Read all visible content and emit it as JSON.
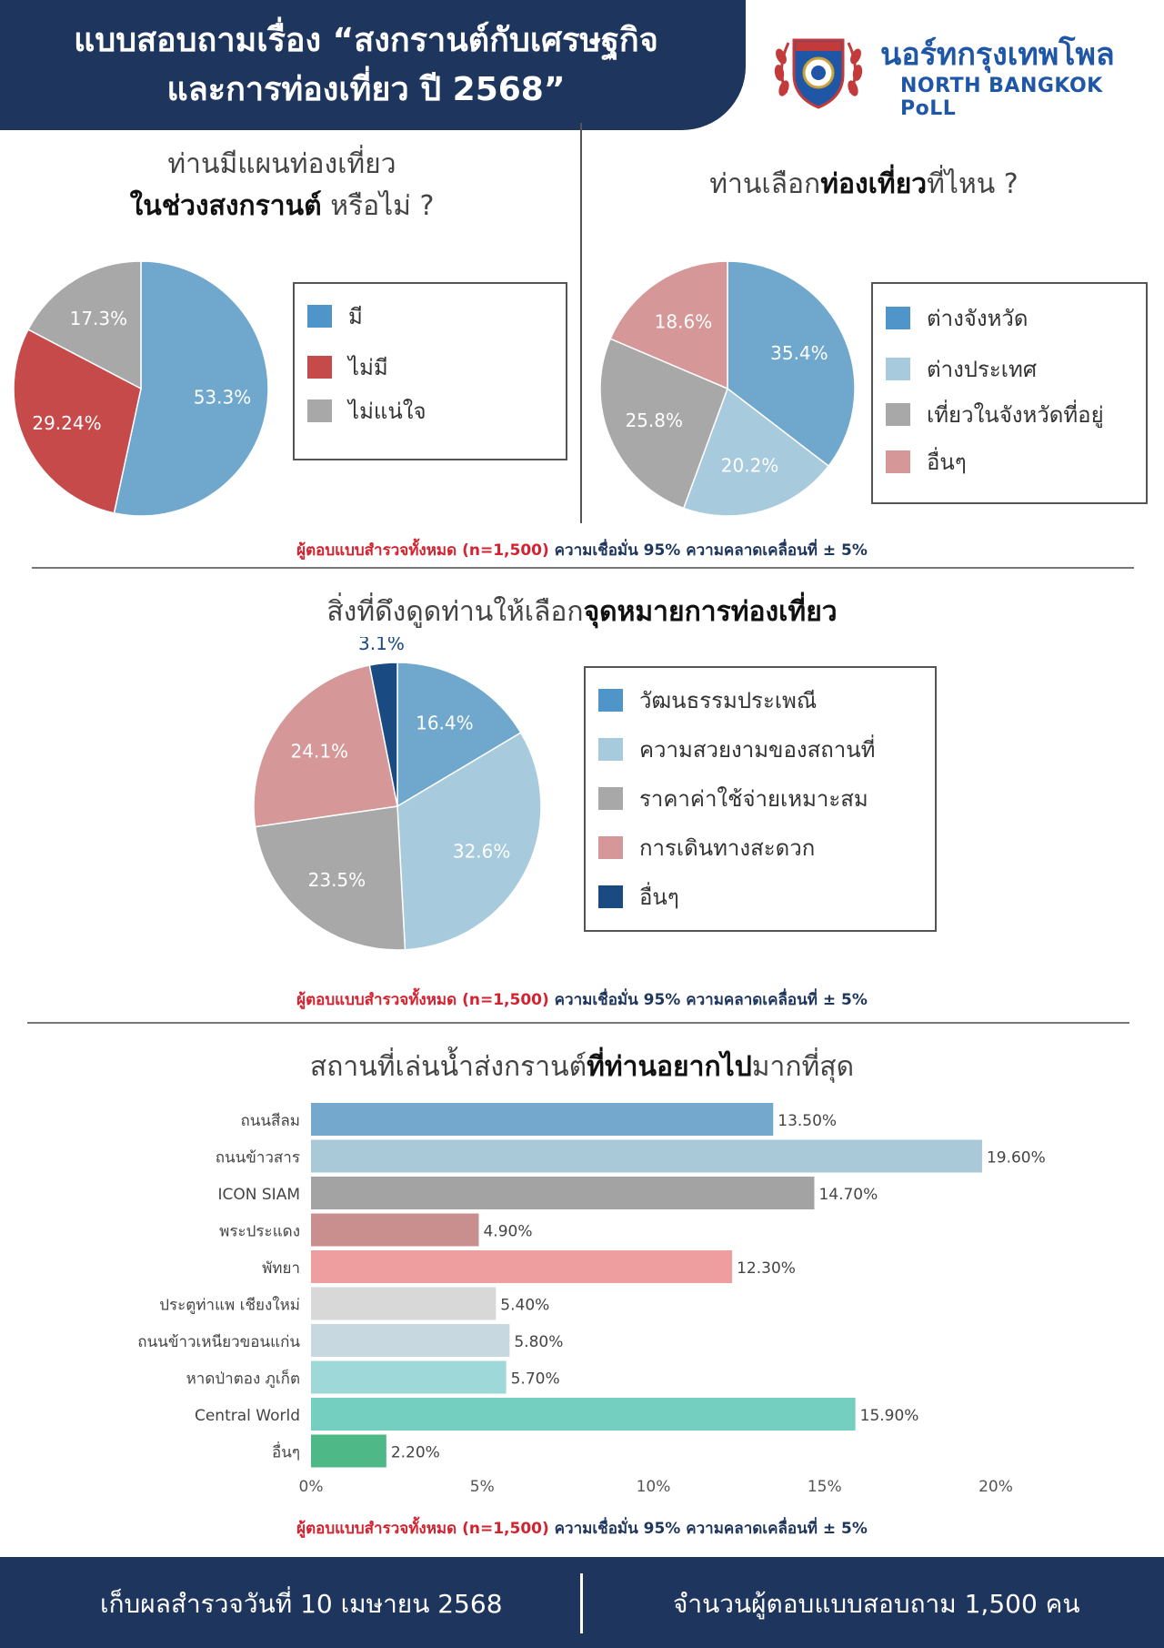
{
  "header": {
    "title_line1": "แบบสอบถามเรื่อง “สงกรานต์กับเศรษฐกิจ",
    "title_line2": "และการท่องเที่ยว ปี 2568”",
    "brand_thai": "นอร์ทกรุงเทพโพล",
    "brand_eng": "NORTH BANGKOK PoLL"
  },
  "colors": {
    "navy": "#1e365e",
    "red_note": "#d32330",
    "brand_blue": "#1f57a6"
  },
  "survey_note": {
    "red": "ผู้ตอบแบบสำรวจทั้งหมด (n=1,500)",
    "blue": "ความเชื่อมั่น 95% ความคลาดเคลื่อนที่ ± 5%"
  },
  "q1": {
    "title_line1": "ท่านมีแผนท่องเที่ยว",
    "title_bold": "ในช่วงสงกรานต์",
    "title_rest": " หรือไม่ ?"
  },
  "q2": {
    "title_pre": "ท่านเลือก",
    "title_bold": "ท่องเที่ยว",
    "title_post": "ที่ไหน ?"
  },
  "q3": {
    "title_pre": "สิ่งที่ดึงดูดท่านให้เลือก",
    "title_bold": "จุดหมายการท่องเที่ยว"
  },
  "q4": {
    "title_pre": "สถานที่เล่นน้ำส่งกรานต์",
    "title_bold": "ที่ท่านอยากไป",
    "title_post": "มากที่สุด"
  },
  "footer": {
    "left": "เก็บผลสำรวจวันที่ 10 เมษายน 2568",
    "right": "จำนวนผู้ตอบแบบสอบถาม 1,500 คน"
  },
  "chart_data": [
    {
      "type": "pie",
      "title": "ท่านมีแผนท่องเที่ยวในช่วงสงกรานต์หรือไม่ ?",
      "slices": [
        {
          "label": "มี",
          "value": 53.3,
          "display": "53.3%",
          "color": "#6fa8cc"
        },
        {
          "label": "ไม่มี",
          "value": 29.24,
          "display": "29.24%",
          "color": "#c64a4a"
        },
        {
          "label": "ไม่แน่ใจ",
          "value": 17.3,
          "display": "17.3%",
          "color": "#a8a8a8"
        }
      ],
      "legend": "right"
    },
    {
      "type": "pie",
      "title": "ท่านเลือกท่องเที่ยวที่ไหน ?",
      "slices": [
        {
          "label": "ต่างจังหวัด",
          "value": 35.4,
          "display": "35.4%",
          "color": "#6fa8cc"
        },
        {
          "label": "ต่างประเทศ",
          "value": 20.2,
          "display": "20.2%",
          "color": "#a7cbdc"
        },
        {
          "label": "เที่ยวในจังหวัดที่อยู่",
          "value": 25.8,
          "display": "25.8%",
          "color": "#a8a8a8"
        },
        {
          "label": "อื่นๆ",
          "value": 18.6,
          "display": "18.6%",
          "color": "#d59797"
        }
      ],
      "legend": "right"
    },
    {
      "type": "pie",
      "title": "สิ่งที่ดึงดูดท่านให้เลือกจุดหมายการท่องเที่ยว",
      "slices": [
        {
          "label": "วัฒนธรรมประเพณี",
          "value": 16.4,
          "display": "16.4%",
          "color": "#6fa8cc"
        },
        {
          "label": "ความสวยงามของสถานที่",
          "value": 32.6,
          "display": "32.6%",
          "color": "#a7cbdc"
        },
        {
          "label": "ราคาค่าใช้จ่ายเหมาะสม",
          "value": 23.5,
          "display": "23.5%",
          "color": "#a8a8a8"
        },
        {
          "label": "การเดินทางสะดวก",
          "value": 24.1,
          "display": "24.1%",
          "color": "#d59797"
        },
        {
          "label": "อื่นๆ",
          "value": 3.1,
          "display": "3.1%",
          "color": "#1a4a82"
        }
      ],
      "legend": "right"
    },
    {
      "type": "bar",
      "orientation": "horizontal",
      "title": "สถานที่เล่นน้ำส่งกรานต์ที่ท่านอยากไปมากที่สุด",
      "categories": [
        "ถนนสีลม",
        "ถนนข้าวสาร",
        "ICON SIAM",
        "พระประแดง",
        "พัทยา",
        "ประตูท่าแพ เชียงใหม่",
        "ถนนข้าวเหนียวขอนแก่น",
        "หาดป่าตอง ภูเก็ต",
        "Central World",
        "อื่นๆ"
      ],
      "values": [
        13.5,
        19.6,
        14.7,
        4.9,
        12.3,
        5.4,
        5.8,
        5.7,
        15.9,
        2.2
      ],
      "value_labels": [
        "13.50%",
        "19.60%",
        "14.70%",
        "4.90%",
        "12.30%",
        "5.40%",
        "5.80%",
        "5.70%",
        "15.90%",
        "2.20%"
      ],
      "colors": [
        "#74a9cd",
        "#a9c9d8",
        "#a3a3a3",
        "#c98e8e",
        "#ee9e9e",
        "#d8d8d8",
        "#c8d8e0",
        "#9fd8d8",
        "#74cfc0",
        "#4fb887"
      ],
      "xlim": [
        0,
        20
      ],
      "xticks": [
        0,
        5,
        10,
        15,
        20
      ],
      "xtick_labels": [
        "0%",
        "5%",
        "10%",
        "15%",
        "20%"
      ],
      "grid": false
    }
  ]
}
